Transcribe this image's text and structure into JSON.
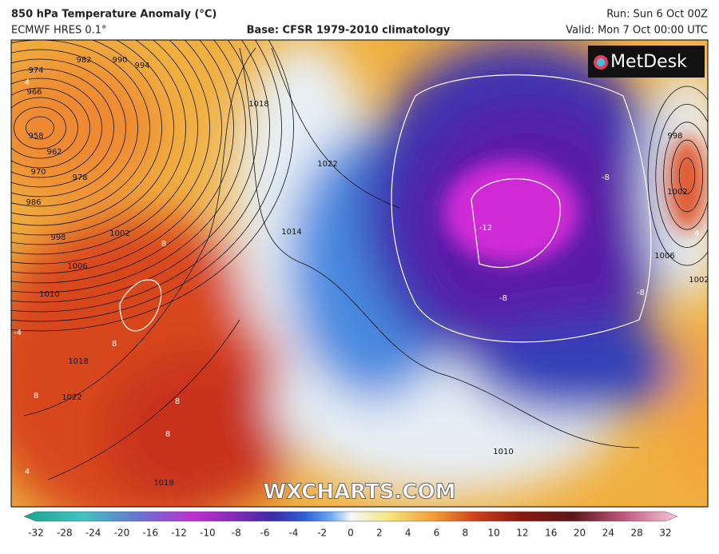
{
  "header": {
    "title": "850 hPa Temperature Anomaly (°C)",
    "model": "ECMWF HRES 0.1°",
    "base": "Base: CFSR 1979-2010 climatology",
    "run": "Run: Sun 6 Oct 00Z",
    "valid": "Valid: Mon 7 Oct 00:00 UTC"
  },
  "logo": "MetDesk",
  "watermark": "WXCHARTS.COM",
  "isobar_labels": [
    974,
    982,
    990,
    994,
    966,
    958,
    962,
    970,
    978,
    986,
    998,
    1002,
    1006,
    1010,
    1018,
    1022,
    1014,
    1018,
    1022,
    1018,
    1010,
    998,
    1002,
    1006,
    1002
  ],
  "anomaly_labels": [
    -12,
    -8,
    -8,
    -8,
    8,
    8,
    8,
    8,
    8,
    -4,
    4,
    4,
    4
  ],
  "colorbar": {
    "ticks": [
      -32,
      -28,
      -24,
      -20,
      -16,
      -12,
      -10,
      -8,
      -6,
      -4,
      -2,
      0,
      2,
      4,
      6,
      8,
      10,
      12,
      16,
      20,
      24,
      28,
      32
    ]
  }
}
